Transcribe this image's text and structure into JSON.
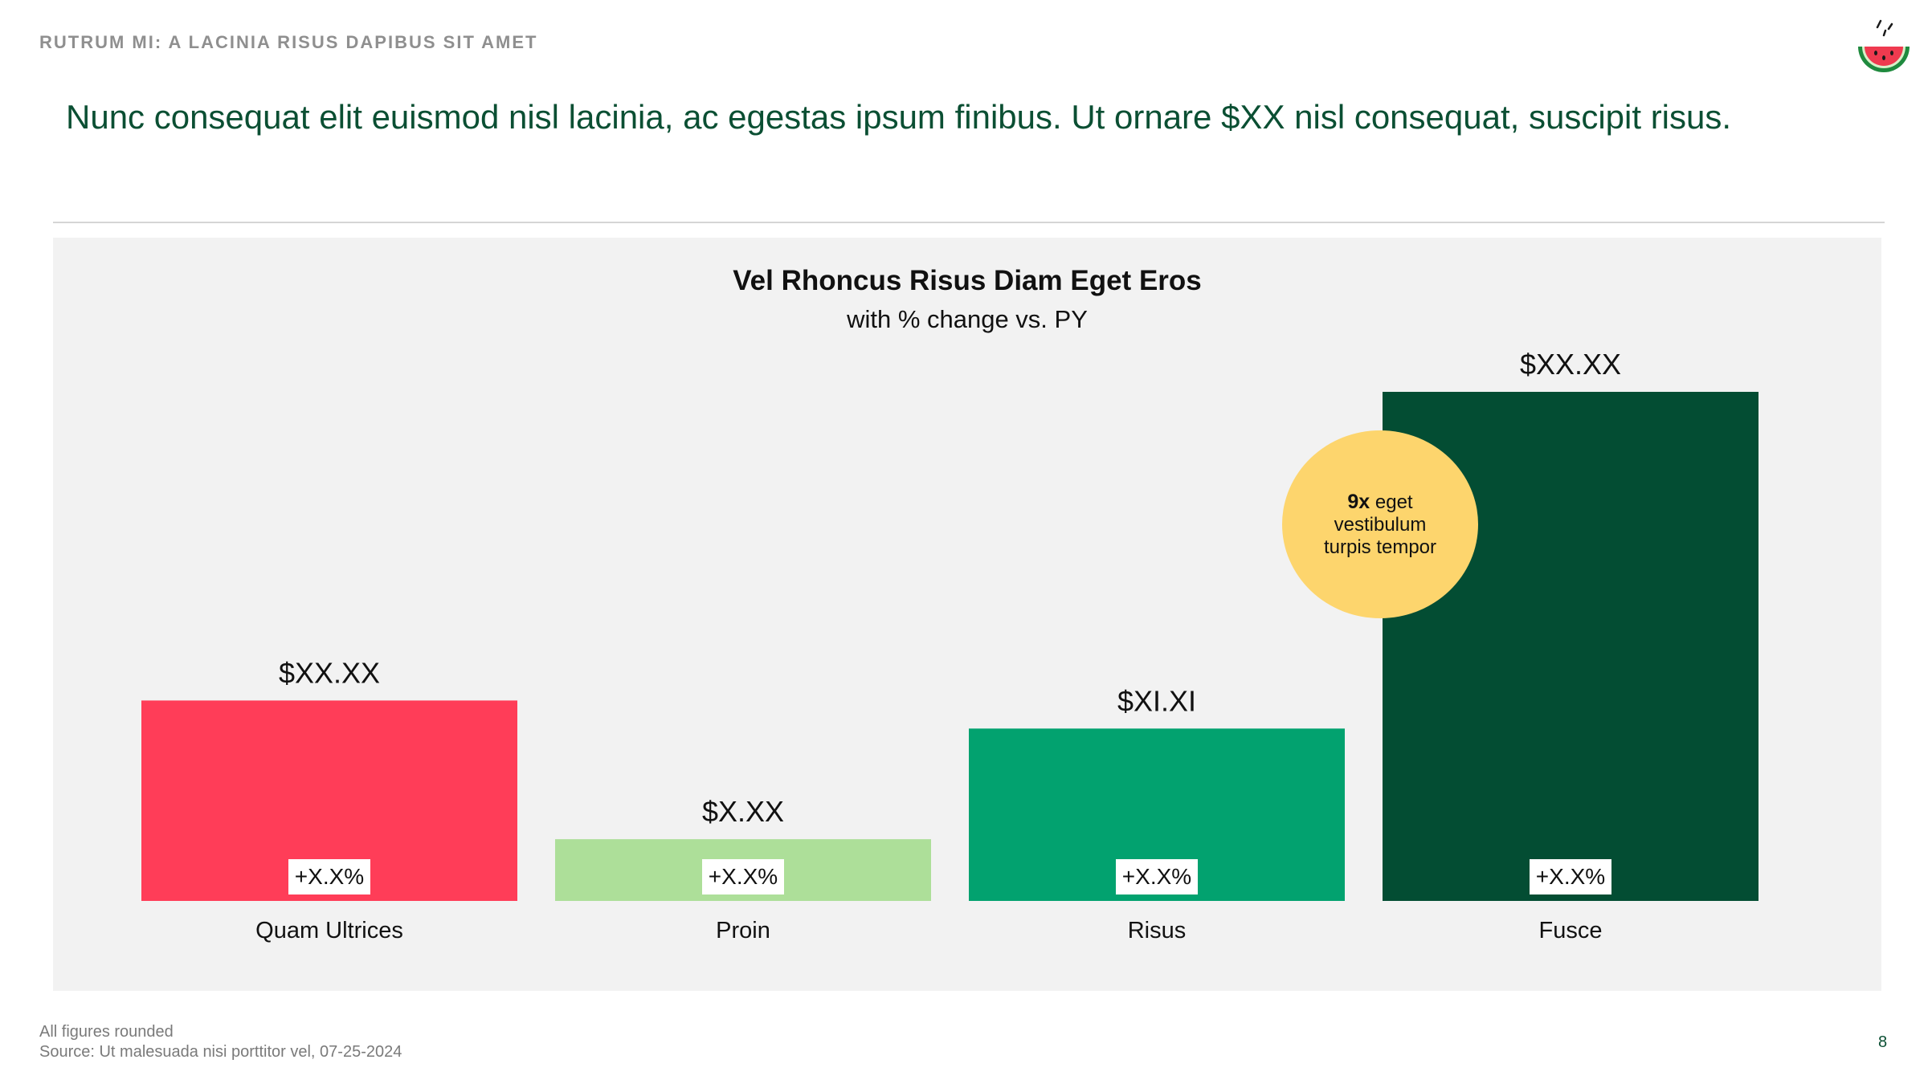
{
  "header": {
    "kicker": "RUTRUM MI: A LACINIA RISUS DAPIBUS SIT AMET",
    "headline": "Nunc consequat elit euismod nisl lacinia, ac egestas ipsum finibus. Ut ornare $XX nisl consequat, suscipit risus.",
    "logo_icon": "watermelon-icon"
  },
  "chart_data": {
    "type": "bar",
    "title": "Vel Rhoncus Risus Diam Eget Eros",
    "subtitle": "with % change vs. PY",
    "categories": [
      "Quam Ultrices",
      "Proin",
      "Risus",
      "Fusce"
    ],
    "values": [
      2.5,
      0.77,
      2.15,
      6.35
    ],
    "value_labels": [
      "$XX.XX",
      "$X.XX",
      "$XI.XI",
      "$XX.XX"
    ],
    "change_labels": [
      "+X.X%",
      "+X.X%",
      "+X.X%",
      "+X.X%"
    ],
    "colors": [
      "#ff3d58",
      "#addf99",
      "#02a26f",
      "#034d33"
    ],
    "ylim": [
      0,
      6.35
    ],
    "grid": false,
    "legend": "none",
    "annotation": {
      "bold": "9x",
      "text": "eget vestibulum turpis tempor",
      "color": "#fdd56d",
      "target": "Fusce"
    }
  },
  "footer": {
    "note": "All figures rounded",
    "source": "Source: Ut malesuada nisi porttitor vel, 07-25-2024",
    "page": "8"
  }
}
